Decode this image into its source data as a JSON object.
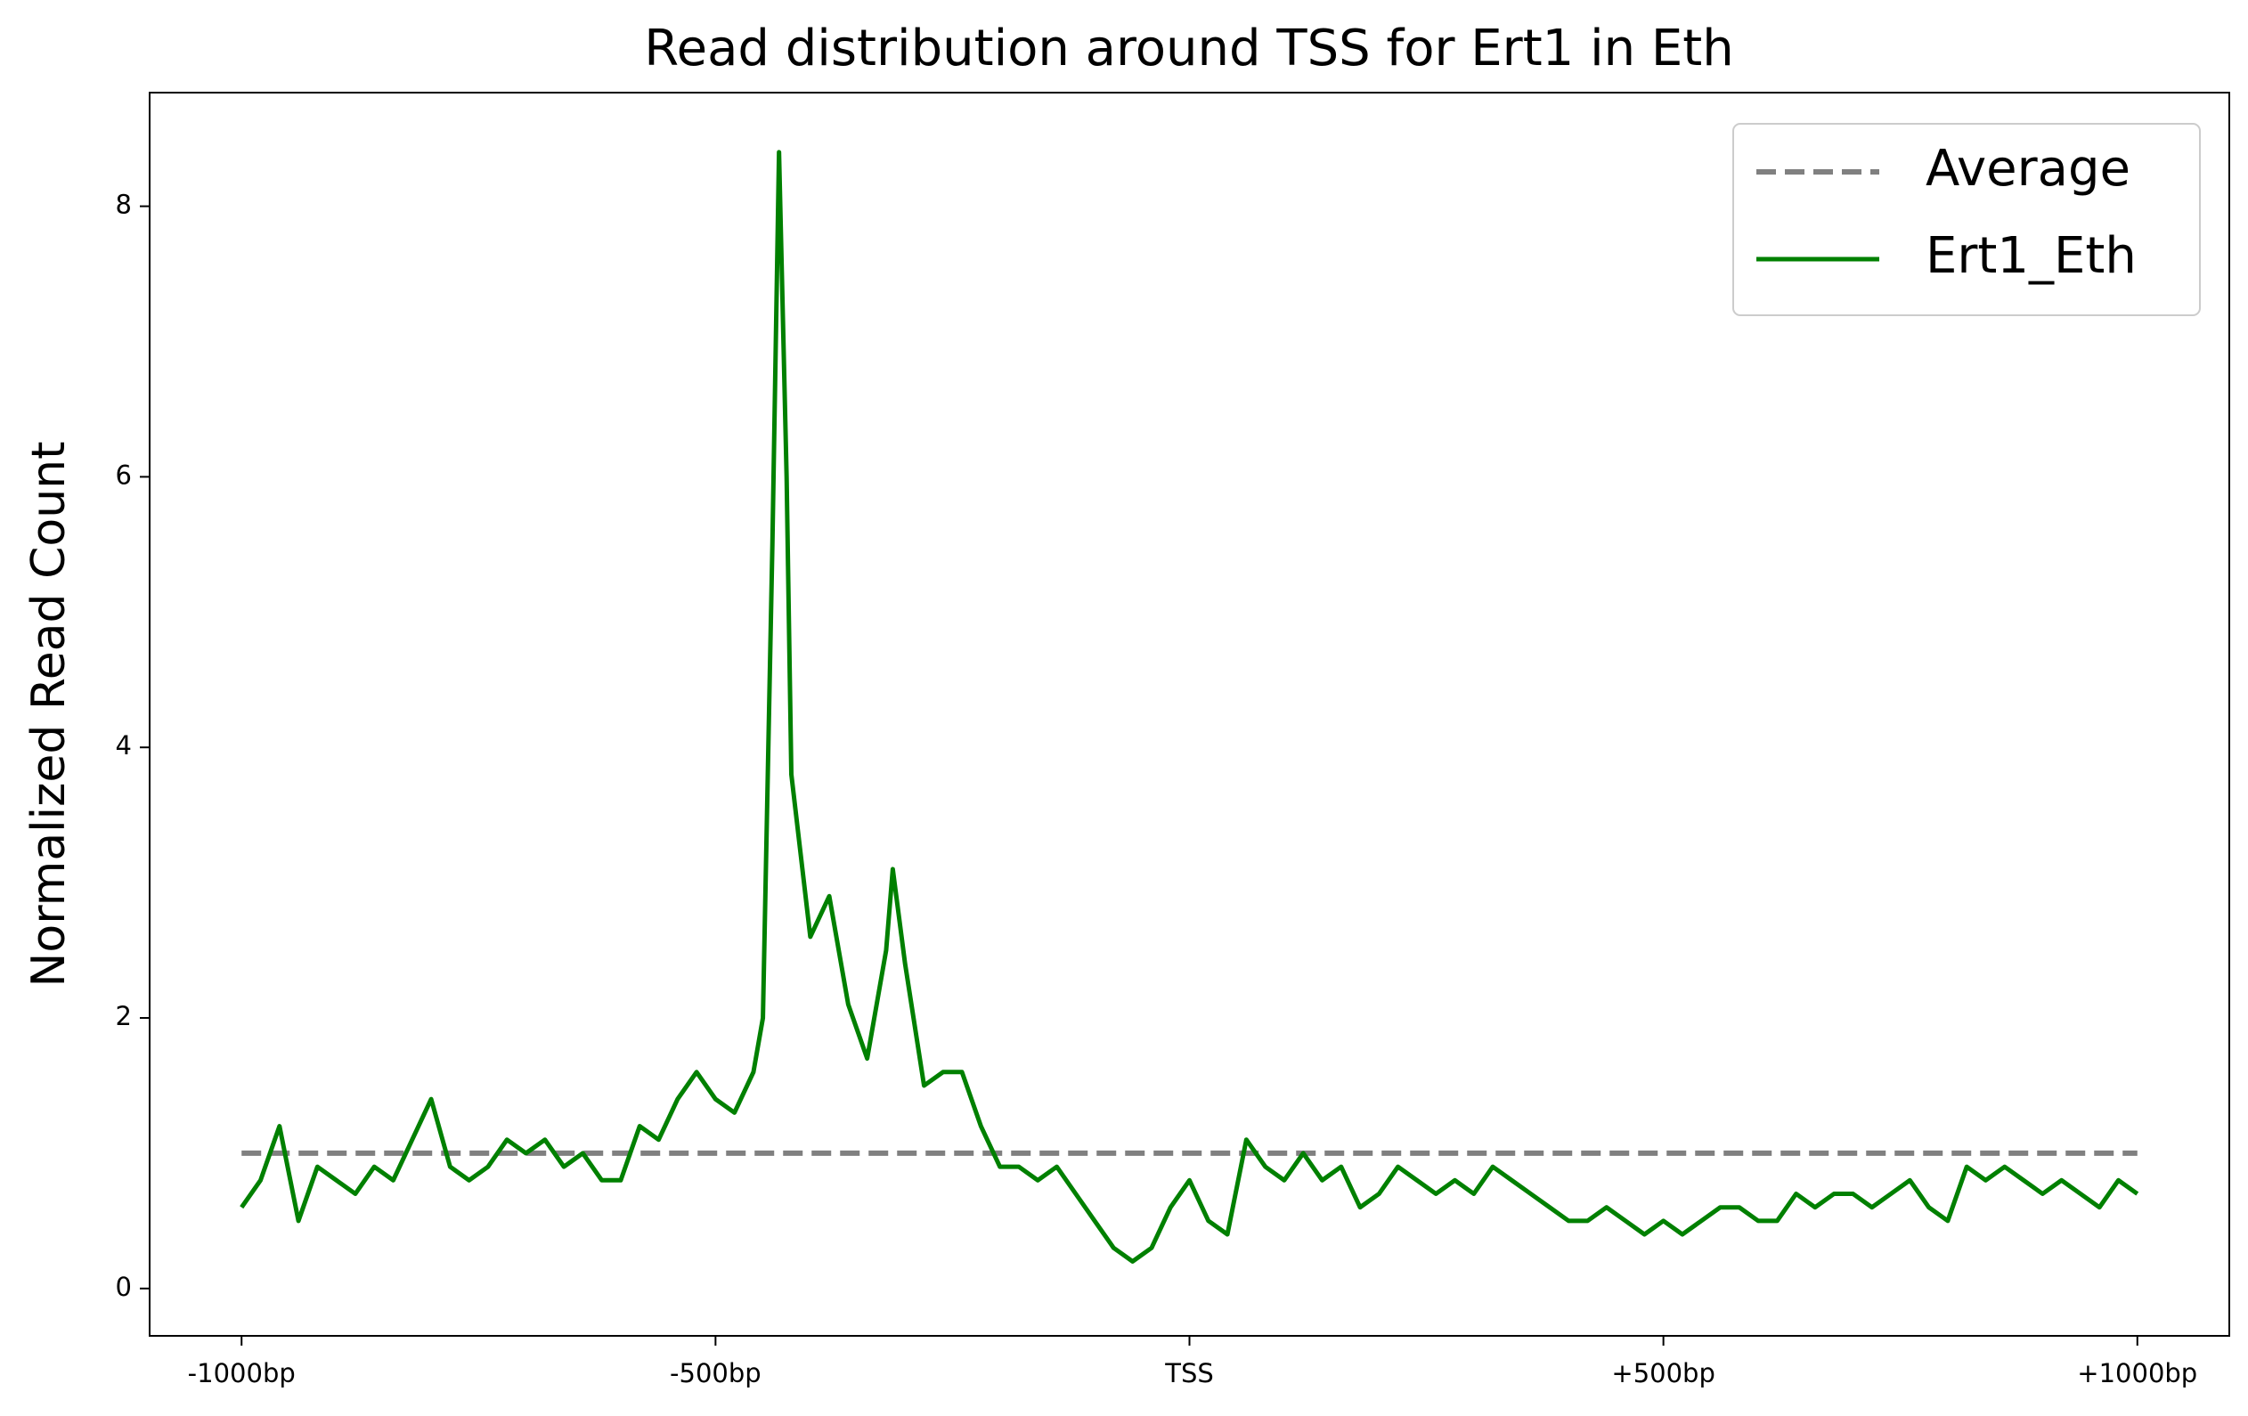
{
  "chart_data": {
    "type": "line",
    "title": "Read distribution around TSS for Ert1 in Eth",
    "y_label": "Normalized Read Count",
    "xlim": [
      -1097,
      1097
    ],
    "ylim": [
      -0.35,
      8.84
    ],
    "xticks": [
      {
        "value": -1000,
        "label": "-1000bp"
      },
      {
        "value": -500,
        "label": "-500bp"
      },
      {
        "value": 0,
        "label": "TSS"
      },
      {
        "value": 500,
        "label": "+500bp"
      },
      {
        "value": 1000,
        "label": "+1000bp"
      }
    ],
    "yticks": [
      0,
      2,
      4,
      6,
      8
    ],
    "legend": "upper right",
    "series": [
      {
        "name": "Average",
        "color": "#808080",
        "dash": true,
        "x": [
          -1000,
          1000
        ],
        "values": [
          1,
          1
        ]
      },
      {
        "name": "Ert1_Eth",
        "color": "#008000",
        "dash": false,
        "x": [
          -1000,
          -980,
          -960,
          -940,
          -920,
          -900,
          -880,
          -860,
          -840,
          -820,
          -800,
          -780,
          -760,
          -740,
          -720,
          -700,
          -680,
          -660,
          -640,
          -620,
          -600,
          -580,
          -560,
          -540,
          -520,
          -500,
          -480,
          -460,
          -450,
          -440,
          -433,
          -425,
          -420,
          -400,
          -380,
          -360,
          -340,
          -320,
          -313,
          -300,
          -280,
          -260,
          -240,
          -220,
          -200,
          -180,
          -160,
          -140,
          -120,
          -100,
          -80,
          -60,
          -40,
          -20,
          0,
          20,
          40,
          60,
          80,
          100,
          120,
          140,
          160,
          180,
          200,
          220,
          240,
          260,
          280,
          300,
          320,
          340,
          360,
          380,
          400,
          420,
          440,
          460,
          480,
          500,
          520,
          540,
          560,
          580,
          600,
          620,
          640,
          660,
          680,
          700,
          720,
          740,
          760,
          780,
          800,
          820,
          840,
          860,
          880,
          900,
          920,
          940,
          960,
          980,
          1000
        ],
        "values": [
          0.6,
          0.8,
          1.2,
          0.5,
          0.9,
          0.8,
          0.7,
          0.9,
          0.8,
          1.1,
          1.4,
          0.9,
          0.8,
          0.9,
          1.1,
          1.0,
          1.1,
          0.9,
          1.0,
          0.8,
          0.8,
          1.2,
          1.1,
          1.4,
          1.6,
          1.4,
          1.3,
          1.6,
          2.0,
          5.5,
          8.4,
          6.0,
          3.8,
          2.6,
          2.9,
          2.1,
          1.7,
          2.5,
          3.1,
          2.4,
          1.5,
          1.6,
          1.6,
          1.2,
          0.9,
          0.9,
          0.8,
          0.9,
          0.7,
          0.5,
          0.3,
          0.2,
          0.3,
          0.6,
          0.8,
          0.5,
          0.4,
          1.1,
          0.9,
          0.8,
          1.0,
          0.8,
          0.9,
          0.6,
          0.7,
          0.9,
          0.8,
          0.7,
          0.8,
          0.7,
          0.9,
          0.8,
          0.7,
          0.6,
          0.5,
          0.5,
          0.6,
          0.5,
          0.4,
          0.5,
          0.4,
          0.5,
          0.6,
          0.6,
          0.5,
          0.5,
          0.7,
          0.6,
          0.7,
          0.7,
          0.6,
          0.7,
          0.8,
          0.6,
          0.5,
          0.9,
          0.8,
          0.9,
          0.8,
          0.7,
          0.8,
          0.7,
          0.6,
          0.8,
          0.7
        ]
      }
    ]
  }
}
